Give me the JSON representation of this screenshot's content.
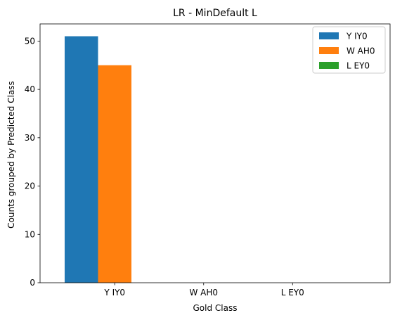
{
  "chart_data": {
    "type": "bar",
    "title": "LR - MinDefault L",
    "xlabel": "Gold Class",
    "ylabel": "Counts grouped by Predicted Class",
    "categories": [
      "Y IY0",
      "W AH0",
      "L EY0"
    ],
    "series": [
      {
        "name": "Y IY0",
        "values": [
          51,
          0,
          0
        ],
        "color": "#1f77b4"
      },
      {
        "name": "W AH0",
        "values": [
          45,
          0,
          0
        ],
        "color": "#ff7f0e"
      },
      {
        "name": "L EY0",
        "values": [
          0,
          0,
          0
        ],
        "color": "#2ca02c"
      }
    ],
    "ylim": [
      0,
      53.55
    ],
    "yticks": [
      0,
      10,
      20,
      30,
      40,
      50
    ],
    "legend_position": "top-right",
    "grid": false
  }
}
